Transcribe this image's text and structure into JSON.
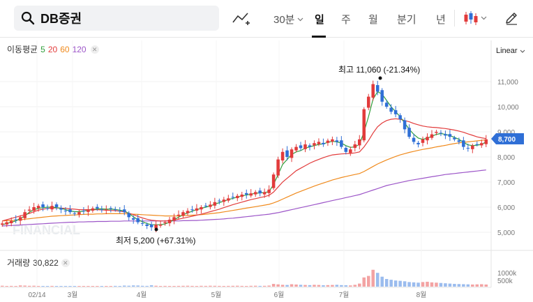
{
  "search": {
    "value": "DB증권"
  },
  "toolbar": {
    "interval_selected": "30분",
    "periods": [
      "일",
      "주",
      "월",
      "분기",
      "년"
    ],
    "active_period": "일",
    "icons": [
      "search-icon",
      "indicator-icon",
      "chart-type-candle-icon",
      "edit-pen-icon"
    ]
  },
  "ma_legend": {
    "label": "이동평균",
    "periods": [
      "5",
      "20",
      "60",
      "120"
    ]
  },
  "scale": {
    "label": "Linear"
  },
  "volume": {
    "label": "거래량",
    "value": "30,822"
  },
  "watermark": "FINANCIAL",
  "colors": {
    "up": "#e23b3b",
    "down": "#2f6fd6",
    "ma5": "#2e9e3a",
    "ma20": "#e23b3b",
    "ma60": "#f08a1c",
    "ma120": "#9c55c8",
    "price_tag": "#2f6fd6"
  },
  "chart_data": {
    "type": "candlestick",
    "current_price": "8,700",
    "high_annotation": "최고 11,060 (-21.34%)",
    "low_annotation": "최저 5,200 (+67.31%)",
    "y_ticks": [
      "11,000",
      "10,000",
      "9,000",
      "8,000",
      "7,000",
      "6,000",
      "5,000"
    ],
    "volume_ticks": [
      "1000k",
      "500k"
    ],
    "x_ticks": [
      "02/14",
      "3월",
      "4월",
      "5월",
      "6월",
      "7월",
      "8월"
    ],
    "price_series": [
      5.35,
      5.4,
      5.45,
      5.5,
      5.6,
      5.8,
      5.9,
      6.0,
      6.05,
      6.0,
      5.95,
      6.05,
      6.0,
      5.9,
      5.85,
      5.8,
      5.75,
      5.8,
      5.85,
      5.9,
      5.95,
      5.95,
      5.9,
      5.9,
      5.95,
      5.9,
      5.85,
      5.8,
      5.6,
      5.5,
      5.4,
      5.35,
      5.25,
      5.2,
      5.3,
      5.3,
      5.4,
      5.5,
      5.6,
      5.7,
      5.8,
      5.85,
      5.9,
      5.95,
      6.0,
      6.05,
      6.1,
      6.2,
      6.25,
      6.3,
      6.35,
      6.4,
      6.45,
      6.5,
      6.5,
      6.55,
      6.6,
      6.55,
      6.6,
      6.7,
      7.3,
      7.9,
      8.2,
      8.0,
      8.3,
      8.4,
      8.35,
      8.5,
      8.4,
      8.55,
      8.6,
      8.5,
      8.65,
      8.7,
      8.6,
      8.4,
      8.2,
      8.3,
      8.5,
      8.7,
      9.9,
      10.4,
      10.9,
      10.6,
      10.2,
      10.0,
      9.8,
      9.7,
      9.5,
      9.1,
      8.8,
      8.6,
      8.5,
      8.7,
      8.8,
      8.9,
      9.0,
      8.95,
      8.85,
      8.8,
      8.7,
      8.6,
      8.4,
      8.35,
      8.45,
      8.5,
      8.55,
      8.7
    ],
    "ma5": [
      5.3,
      5.35,
      5.4,
      5.45,
      5.55,
      5.65,
      5.8,
      5.9,
      5.95,
      5.98,
      6.0,
      6.0,
      5.98,
      5.95,
      5.9,
      5.85,
      5.82,
      5.82,
      5.84,
      5.88,
      5.9,
      5.93,
      5.93,
      5.92,
      5.92,
      5.91,
      5.88,
      5.85,
      5.75,
      5.62,
      5.5,
      5.42,
      5.35,
      5.3,
      5.3,
      5.3,
      5.33,
      5.4,
      5.5,
      5.6,
      5.7,
      5.77,
      5.84,
      5.9,
      5.95,
      6.0,
      6.05,
      6.12,
      6.18,
      6.24,
      6.3,
      6.35,
      6.4,
      6.45,
      6.48,
      6.52,
      6.55,
      6.57,
      6.58,
      6.62,
      6.9,
      7.3,
      7.7,
      7.9,
      8.1,
      8.2,
      8.25,
      8.35,
      8.4,
      8.45,
      8.5,
      8.52,
      8.58,
      8.62,
      8.6,
      8.55,
      8.45,
      8.38,
      8.4,
      8.5,
      9.0,
      9.6,
      10.3,
      10.6,
      10.5,
      10.25,
      10.0,
      9.8,
      9.6,
      9.35,
      9.1,
      8.9,
      8.75,
      8.7,
      8.75,
      8.82,
      8.9,
      8.93,
      8.9,
      8.85,
      8.78,
      8.7,
      8.58,
      8.48,
      8.45,
      8.47,
      8.5,
      8.6
    ],
    "ma20": [
      5.45,
      5.5,
      5.55,
      5.6,
      5.65,
      5.7,
      5.75,
      5.82,
      5.88,
      5.92,
      5.95,
      5.97,
      5.97,
      5.96,
      5.95,
      5.93,
      5.92,
      5.9,
      5.9,
      5.9,
      5.9,
      5.9,
      5.89,
      5.88,
      5.87,
      5.86,
      5.84,
      5.81,
      5.76,
      5.7,
      5.63,
      5.57,
      5.52,
      5.48,
      5.46,
      5.45,
      5.45,
      5.46,
      5.48,
      5.52,
      5.56,
      5.6,
      5.64,
      5.68,
      5.72,
      5.77,
      5.82,
      5.87,
      5.92,
      5.98,
      6.04,
      6.1,
      6.15,
      6.2,
      6.25,
      6.3,
      6.34,
      6.38,
      6.42,
      6.47,
      6.6,
      6.8,
      7.0,
      7.15,
      7.3,
      7.45,
      7.55,
      7.65,
      7.75,
      7.83,
      7.9,
      7.97,
      8.03,
      8.08,
      8.1,
      8.12,
      8.13,
      8.14,
      8.16,
      8.2,
      8.4,
      8.65,
      8.95,
      9.2,
      9.35,
      9.45,
      9.5,
      9.52,
      9.5,
      9.45,
      9.4,
      9.33,
      9.28,
      9.23,
      9.2,
      9.18,
      9.17,
      9.15,
      9.13,
      9.1,
      9.07,
      9.03,
      8.98,
      8.92,
      8.86,
      8.8,
      8.76,
      8.73
    ],
    "ma60": [
      5.45,
      5.46,
      5.47,
      5.48,
      5.5,
      5.52,
      5.54,
      5.56,
      5.58,
      5.6,
      5.62,
      5.64,
      5.65,
      5.66,
      5.67,
      5.68,
      5.69,
      5.7,
      5.71,
      5.72,
      5.72,
      5.73,
      5.73,
      5.74,
      5.74,
      5.74,
      5.74,
      5.74,
      5.73,
      5.72,
      5.71,
      5.7,
      5.69,
      5.68,
      5.67,
      5.66,
      5.65,
      5.65,
      5.65,
      5.65,
      5.66,
      5.67,
      5.68,
      5.69,
      5.7,
      5.72,
      5.74,
      5.76,
      5.78,
      5.81,
      5.84,
      5.87,
      5.9,
      5.93,
      5.96,
      5.99,
      6.02,
      6.05,
      6.08,
      6.11,
      6.17,
      6.24,
      6.32,
      6.4,
      6.48,
      6.56,
      6.63,
      6.7,
      6.77,
      6.84,
      6.9,
      6.96,
      7.02,
      7.08,
      7.13,
      7.18,
      7.22,
      7.26,
      7.3,
      7.34,
      7.42,
      7.52,
      7.62,
      7.72,
      7.8,
      7.88,
      7.95,
      8.02,
      8.08,
      8.13,
      8.18,
      8.22,
      8.26,
      8.3,
      8.33,
      8.36,
      8.4,
      8.43,
      8.46,
      8.5,
      8.53,
      8.56,
      8.58,
      8.6,
      8.62,
      8.64,
      8.66,
      8.68
    ],
    "ma120": [
      5.25,
      5.26,
      5.27,
      5.28,
      5.29,
      5.3,
      5.31,
      5.32,
      5.33,
      5.34,
      5.35,
      5.36,
      5.37,
      5.38,
      5.39,
      5.4,
      5.4,
      5.41,
      5.41,
      5.42,
      5.42,
      5.43,
      5.43,
      5.43,
      5.44,
      5.44,
      5.44,
      5.45,
      5.45,
      5.45,
      5.45,
      5.45,
      5.45,
      5.45,
      5.45,
      5.45,
      5.45,
      5.45,
      5.45,
      5.45,
      5.46,
      5.46,
      5.47,
      5.47,
      5.48,
      5.49,
      5.5,
      5.51,
      5.52,
      5.53,
      5.55,
      5.56,
      5.58,
      5.6,
      5.62,
      5.64,
      5.66,
      5.68,
      5.7,
      5.72,
      5.75,
      5.78,
      5.82,
      5.86,
      5.9,
      5.94,
      5.98,
      6.02,
      6.06,
      6.1,
      6.14,
      6.18,
      6.22,
      6.26,
      6.3,
      6.34,
      6.38,
      6.42,
      6.46,
      6.5,
      6.56,
      6.62,
      6.68,
      6.74,
      6.8,
      6.86,
      6.9,
      6.94,
      6.98,
      7.02,
      7.06,
      7.09,
      7.12,
      7.15,
      7.18,
      7.21,
      7.24,
      7.27,
      7.3,
      7.32,
      7.34,
      7.36,
      7.38,
      7.4,
      7.42,
      7.44,
      7.46,
      7.48
    ],
    "volume_series": [
      60,
      40,
      50,
      45,
      80,
      70,
      55,
      60,
      45,
      40,
      35,
      50,
      45,
      40,
      35,
      30,
      40,
      35,
      30,
      35,
      40,
      35,
      30,
      35,
      40,
      50,
      45,
      70,
      60,
      80,
      75,
      55,
      50,
      90,
      60,
      45,
      50,
      40,
      45,
      50,
      55,
      60,
      50,
      45,
      55,
      50,
      60,
      55,
      50,
      45,
      50,
      55,
      60,
      50,
      45,
      55,
      60,
      50,
      55,
      70,
      180,
      150,
      120,
      110,
      160,
      140,
      120,
      110,
      100,
      120,
      110,
      90,
      100,
      110,
      120,
      100,
      90,
      80,
      120,
      200,
      600,
      700,
      1100,
      900,
      650,
      500,
      450,
      400,
      380,
      350,
      300,
      280,
      260,
      300,
      320,
      280,
      260,
      240,
      220,
      200,
      180,
      170,
      160,
      150,
      140,
      150,
      160,
      140
    ]
  }
}
